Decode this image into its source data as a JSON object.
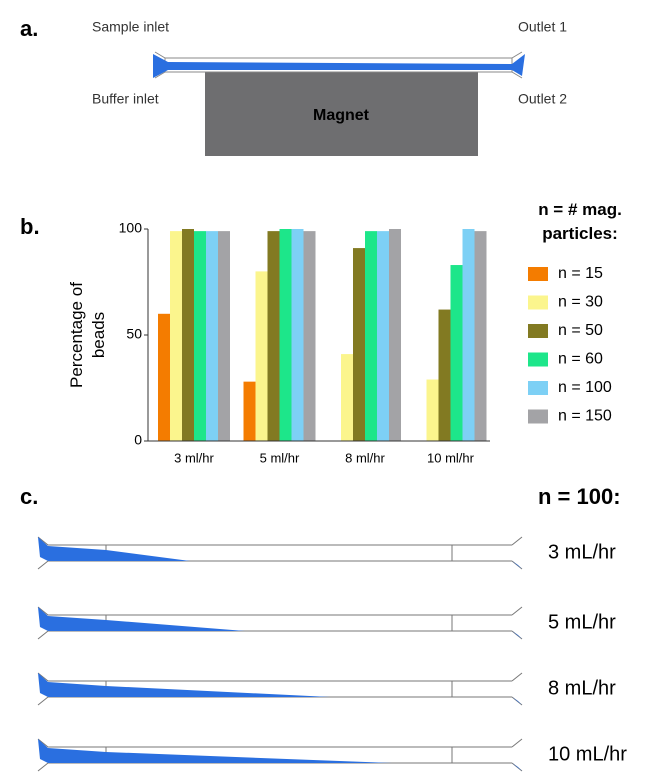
{
  "panel_a": {
    "label": "a.",
    "sample_inlet": "Sample inlet",
    "buffer_inlet": "Buffer inlet",
    "outlet_1": "Outlet 1",
    "outlet_2": "Outlet 2",
    "magnet": "Magnet"
  },
  "panel_b": {
    "label": "b."
  },
  "chart_data": {
    "type": "bar",
    "ylabel": "Percentage of beads",
    "legend_title": "n = # mag. particles:",
    "categories": [
      "3 ml/hr",
      "5 ml/hr",
      "8 ml/hr",
      "10 ml/hr"
    ],
    "series": [
      {
        "name": "n = 15",
        "color": "#f47c00",
        "values": [
          60,
          28,
          null,
          null
        ]
      },
      {
        "name": "n = 30",
        "color": "#fbf58d",
        "values": [
          99,
          80,
          41,
          29
        ]
      },
      {
        "name": "n = 50",
        "color": "#827a22",
        "values": [
          100,
          99,
          91,
          62
        ]
      },
      {
        "name": "n = 60",
        "color": "#1de68a",
        "values": [
          99,
          100,
          99,
          83
        ]
      },
      {
        "name": "n = 100",
        "color": "#7dd0f5",
        "values": [
          99,
          100,
          99,
          100
        ]
      },
      {
        "name": "n = 150",
        "color": "#a3a3a6",
        "values": [
          99,
          99,
          100,
          99
        ]
      }
    ],
    "ylim": [
      0,
      100
    ],
    "yticks": [
      0,
      50,
      100
    ]
  },
  "panel_c": {
    "label": "c.",
    "title": "n = 100:",
    "rows": [
      "3 mL/hr",
      "5 mL/hr",
      "8 mL/hr",
      "10 mL/hr"
    ]
  }
}
